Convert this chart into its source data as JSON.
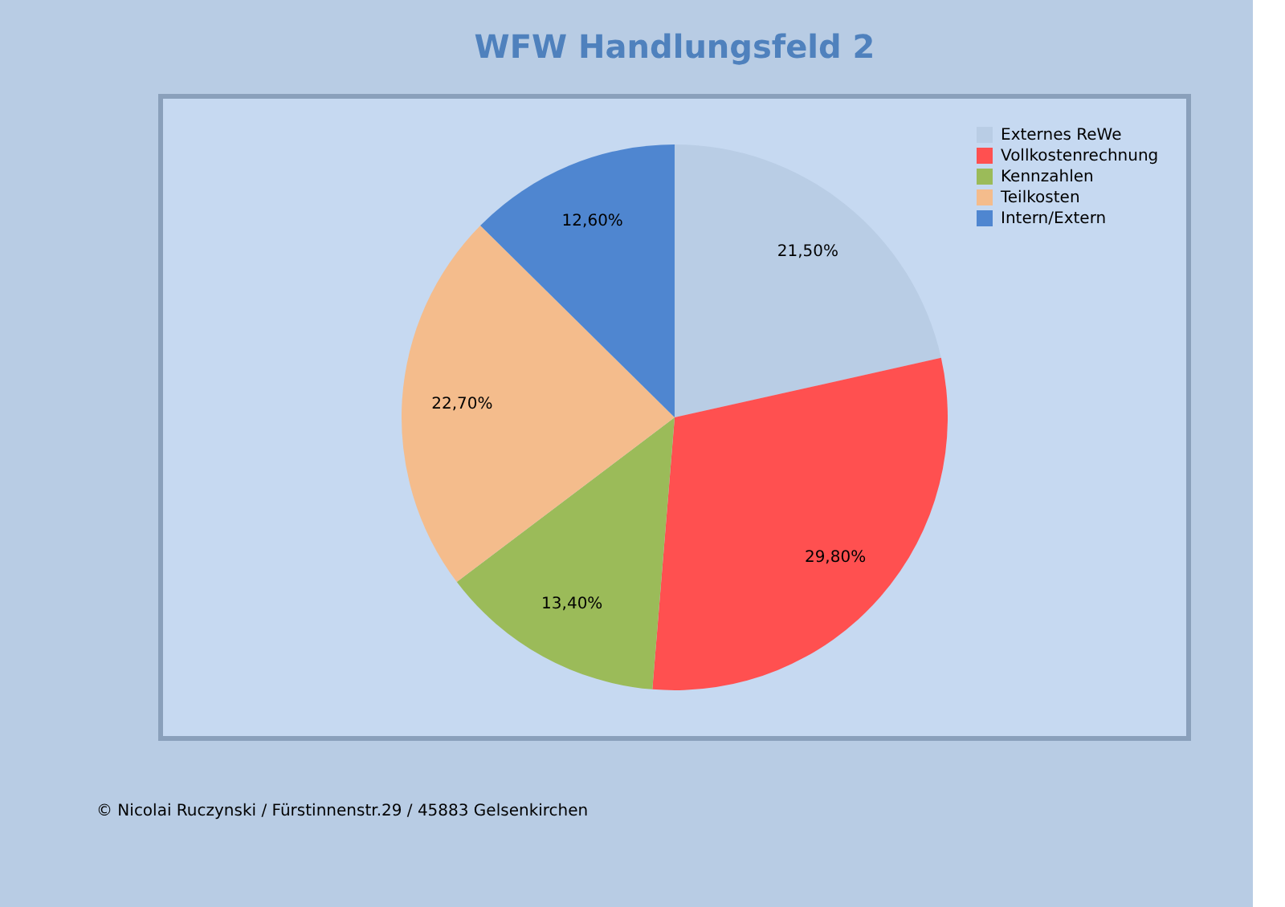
{
  "chart_data": {
    "type": "pie",
    "title": "WFW Handlungsfeld 2",
    "categories": [
      "Externes ReWe",
      "Vollkostenrechnung",
      "Kennzahlen",
      "Teilkosten",
      "Intern/Extern"
    ],
    "values": [
      21.5,
      29.8,
      13.4,
      22.7,
      12.6
    ],
    "colors": [
      "#b9cde5",
      "#ff5050",
      "#9bbb59",
      "#f4bc8c",
      "#4f86d0"
    ],
    "value_labels": [
      "21,50%",
      "29,80%",
      "13,40%",
      "22,70%",
      "12,60%"
    ],
    "legend": "top right",
    "annotations": [
      "© Nicolai Ruczynski / Fürstinnenstr.29 / 45883 Gelsenkirchen"
    ]
  }
}
